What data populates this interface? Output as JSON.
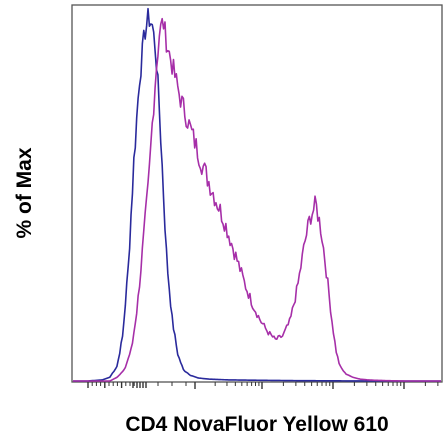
{
  "chart_data": {
    "type": "line",
    "xlabel": "CD4 NovaFluor Yellow 610",
    "ylabel": "% of Max",
    "xlim": [
      0,
      100
    ],
    "ylim": [
      0,
      100
    ],
    "grid": false,
    "legend": "none",
    "series": [
      {
        "color": "#2a2a9c",
        "x": [
          0,
          4,
          8,
          10,
          12,
          13.5,
          15,
          16.5,
          18,
          19.5,
          20.5,
          21.5,
          22.5,
          23.5,
          24.5,
          25.5,
          27,
          28.5,
          30,
          32,
          34,
          37,
          42,
          50,
          60,
          70,
          80,
          90,
          100
        ],
        "y": [
          0,
          0,
          0.3,
          1,
          4,
          12,
          30,
          58,
          80,
          93,
          97,
          95,
          88,
          72,
          52,
          32,
          16,
          7,
          3,
          1.5,
          0.8,
          0.5,
          0.3,
          0.2,
          0.1,
          0.05,
          0,
          0,
          0
        ]
      },
      {
        "color": "#a62fa8",
        "x": [
          0,
          10,
          12,
          14,
          16,
          17.5,
          19,
          20.5,
          21.5,
          22.5,
          23.5,
          24.5,
          25.5,
          27,
          29,
          31,
          33,
          35,
          37,
          39,
          41,
          43,
          45,
          47,
          49,
          51,
          53,
          55,
          57,
          59,
          61,
          63,
          64.5,
          66,
          67.5,
          69,
          70.5,
          71.5,
          72.5,
          74,
          76,
          78,
          80,
          82,
          85,
          90,
          100
        ],
        "y": [
          0,
          0,
          1,
          3,
          9,
          20,
          36,
          52,
          68,
          82,
          93,
          96,
          90,
          84,
          76,
          70,
          64,
          58,
          53,
          48,
          43,
          37,
          31,
          25,
          20,
          16,
          13,
          11,
          12,
          16,
          25,
          37,
          44,
          47,
          40,
          28,
          15,
          8,
          4,
          2,
          1,
          0.5,
          0.3,
          0.2,
          0.1,
          0,
          0
        ]
      }
    ]
  }
}
